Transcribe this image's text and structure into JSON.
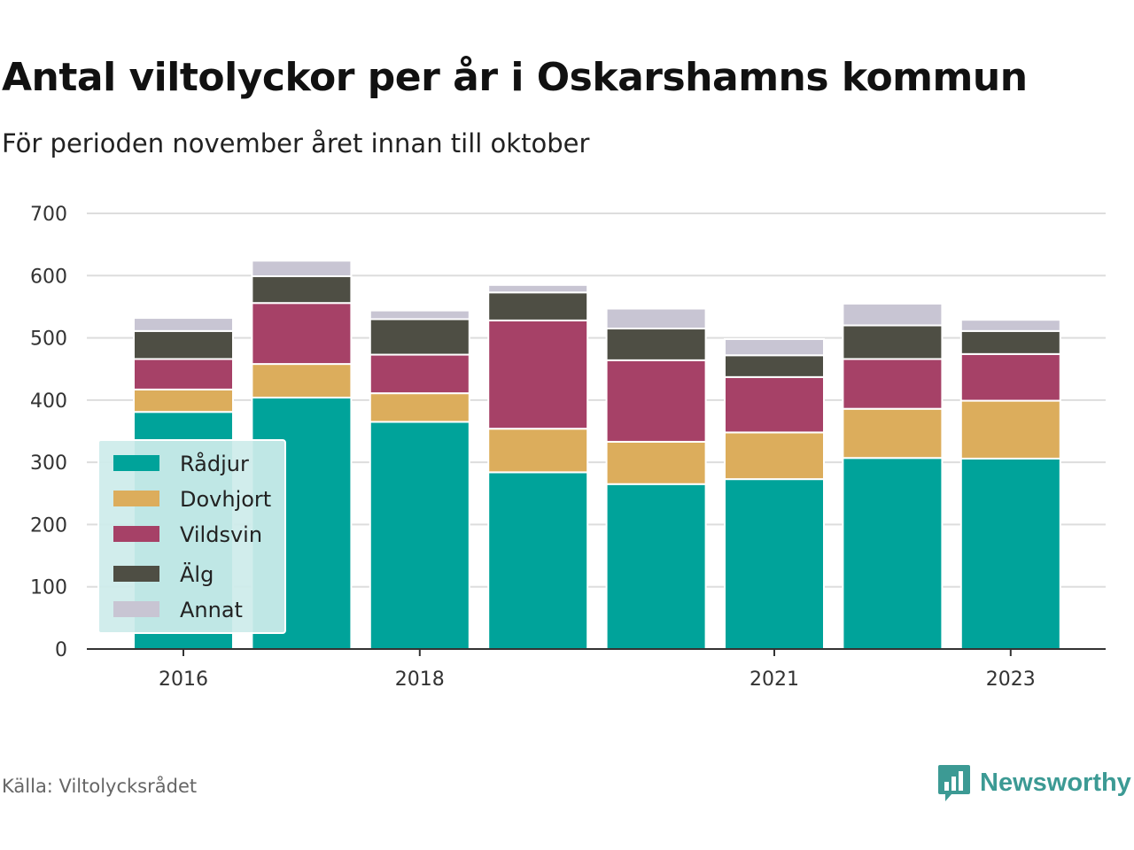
{
  "header": {
    "title": "Antal viltolyckor per år i Oskarshamns kommun",
    "subtitle": "För perioden november året innan till oktober"
  },
  "footer": {
    "source": "Källa: Viltolycksrådet",
    "brand": "Newsworthy",
    "brand_icon": "bar-chart-speech-bubble-icon"
  },
  "chart_data": {
    "type": "bar",
    "stacked": true,
    "categories": [
      "2016",
      "2017",
      "2018",
      "2019",
      "2020",
      "2021",
      "2022",
      "2023"
    ],
    "x_tick_labels": [
      "2016",
      "",
      "2018",
      "",
      "",
      "2021",
      "",
      "2023"
    ],
    "series": [
      {
        "name": "Rådjur",
        "color": "#00a39a",
        "values": [
          381,
          404,
          365,
          284,
          265,
          273,
          307,
          306
        ]
      },
      {
        "name": "Dovhjort",
        "color": "#dcad5c",
        "values": [
          36,
          54,
          46,
          70,
          68,
          75,
          79,
          93
        ]
      },
      {
        "name": "Vildsvin",
        "color": "#a64167",
        "values": [
          49,
          98,
          62,
          174,
          131,
          89,
          80,
          75
        ]
      },
      {
        "name": "Älg",
        "color": "#4e4e44",
        "values": [
          45,
          43,
          57,
          45,
          51,
          35,
          54,
          37
        ]
      },
      {
        "name": "Annat",
        "color": "#c8c5d3",
        "values": [
          21,
          25,
          14,
          12,
          32,
          26,
          35,
          18
        ]
      }
    ],
    "ylim": [
      0,
      700
    ],
    "yticks": [
      0,
      100,
      200,
      300,
      400,
      500,
      600,
      700
    ],
    "grid": true,
    "legend": {
      "placement": "bottom-left",
      "background": "#cdeceb"
    }
  }
}
